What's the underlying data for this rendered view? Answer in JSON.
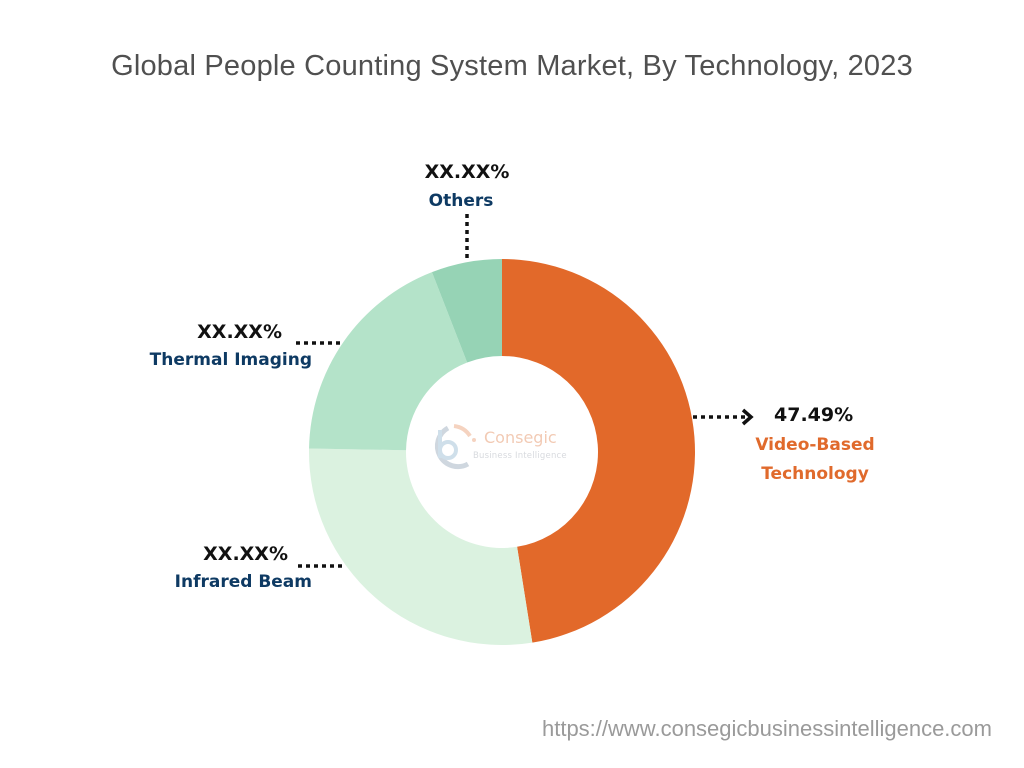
{
  "chart_data": {
    "type": "pie",
    "subtype": "donut",
    "title": "Global People Counting System Market, By Technology, 2023",
    "center": [
      502,
      452
    ],
    "outer_radius": 193,
    "inner_radius": 96,
    "start_angle_deg": 0,
    "direction": "clockwise",
    "slices": [
      {
        "name": "Video-Based Technology",
        "value": 47.49,
        "label": "47.49%",
        "color": "#e2692a"
      },
      {
        "name": "Infrared Beam",
        "value": 27.8,
        "label": "XX.XX%",
        "color": "#dbf2e0"
      },
      {
        "name": "Thermal Imaging",
        "value": 18.8,
        "label": "XX.XX%",
        "color": "#b4e3c9"
      },
      {
        "name": "Others",
        "value": 5.91,
        "label": "XX.XX%",
        "color": "#96d3b5"
      }
    ],
    "legend": "none",
    "grid": false
  },
  "labels": {
    "video": {
      "pct": "47.49%",
      "line1": "Video-Based",
      "line2": "Technology"
    },
    "infrared": {
      "pct": "XX.XX%",
      "name": "Infrared Beam"
    },
    "thermal": {
      "pct": "XX.XX%",
      "name": "Thermal Imaging"
    },
    "others": {
      "pct": "XX.XX%",
      "name": "Others"
    }
  },
  "watermark": {
    "brand": "Consegic",
    "tagline": "Business Intelligence"
  },
  "footer": {
    "url": "https://www.consegicbusinessintelligence.com"
  }
}
